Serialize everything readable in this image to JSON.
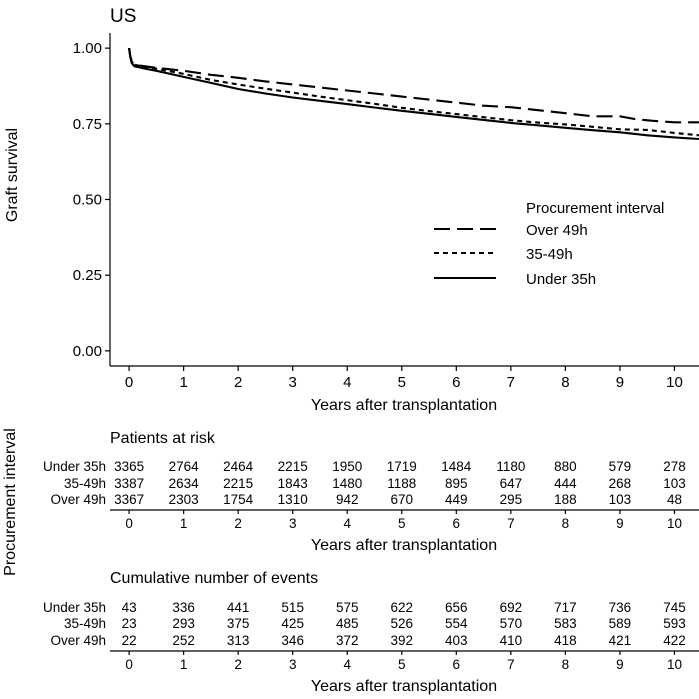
{
  "chart_data": {
    "type": "line",
    "title": "US",
    "xlabel": "Years after transplantation",
    "ylabel": "Graft survival",
    "xlim": [
      -0.35,
      10.45
    ],
    "ylim": [
      -0.05,
      1.05
    ],
    "x_ticks": [
      "0",
      "1",
      "2",
      "3",
      "4",
      "5",
      "6",
      "7",
      "8",
      "9",
      "10"
    ],
    "y_ticks": [
      "0.00",
      "0.25",
      "0.50",
      "0.75",
      "1.00"
    ],
    "legend": {
      "title": "Procurement interval",
      "position": "right",
      "items": [
        {
          "label": "Over 49h",
          "style": "long-dash"
        },
        {
          "label": "35-49h",
          "style": "short-dash"
        },
        {
          "label": "Under 35h",
          "style": "solid"
        }
      ]
    },
    "series": [
      {
        "name": "Over 49h",
        "style": "long-dash",
        "x": [
          0,
          0.02,
          0.05,
          0.1,
          0.3,
          0.5,
          1,
          1.5,
          2,
          2.5,
          3,
          3.5,
          4,
          4.5,
          5,
          5.5,
          6,
          6.5,
          7,
          7.5,
          8,
          8.5,
          9,
          9.3,
          9.6,
          10,
          10.45
        ],
        "y": [
          1.0,
          0.975,
          0.955,
          0.945,
          0.94,
          0.935,
          0.925,
          0.912,
          0.902,
          0.89,
          0.88,
          0.87,
          0.86,
          0.85,
          0.84,
          0.83,
          0.82,
          0.81,
          0.805,
          0.795,
          0.785,
          0.775,
          0.775,
          0.765,
          0.76,
          0.755,
          0.755
        ]
      },
      {
        "name": "35-49h",
        "style": "short-dash",
        "x": [
          0,
          0.02,
          0.05,
          0.1,
          0.3,
          0.5,
          1,
          1.5,
          2,
          2.5,
          3,
          3.5,
          4,
          4.5,
          5,
          5.5,
          6,
          6.5,
          7,
          7.5,
          8,
          8.5,
          9,
          9.5,
          10,
          10.45
        ],
        "y": [
          1.0,
          0.975,
          0.955,
          0.945,
          0.938,
          0.932,
          0.915,
          0.895,
          0.88,
          0.866,
          0.853,
          0.84,
          0.828,
          0.816,
          0.803,
          0.792,
          0.782,
          0.772,
          0.762,
          0.754,
          0.748,
          0.74,
          0.732,
          0.73,
          0.72,
          0.712
        ]
      },
      {
        "name": "Under 35h",
        "style": "solid",
        "x": [
          0,
          0.02,
          0.05,
          0.1,
          0.3,
          0.5,
          1,
          1.5,
          2,
          2.5,
          3,
          3.5,
          4,
          4.5,
          5,
          5.5,
          6,
          6.5,
          7,
          7.5,
          8,
          8.5,
          9,
          9.5,
          10,
          10.45
        ],
        "y": [
          1.0,
          0.972,
          0.95,
          0.94,
          0.932,
          0.925,
          0.905,
          0.885,
          0.865,
          0.85,
          0.837,
          0.826,
          0.815,
          0.804,
          0.793,
          0.783,
          0.773,
          0.763,
          0.753,
          0.745,
          0.737,
          0.729,
          0.722,
          0.712,
          0.705,
          0.7
        ]
      }
    ],
    "risk_table": {
      "group_axis_label": "Procurement interval",
      "x_ticks": [
        "0",
        "1",
        "2",
        "3",
        "4",
        "5",
        "6",
        "7",
        "8",
        "9",
        "10"
      ],
      "xlabel": "Years after transplantation",
      "tables": [
        {
          "title": "Patients at risk",
          "rows": [
            {
              "label": "Under 35h",
              "values": [
                "3365",
                "2764",
                "2464",
                "2215",
                "1950",
                "1719",
                "1484",
                "1180",
                "880",
                "579",
                "278"
              ]
            },
            {
              "label": "35-49h",
              "values": [
                "3387",
                "2634",
                "2215",
                "1843",
                "1480",
                "1188",
                "895",
                "647",
                "444",
                "268",
                "103"
              ]
            },
            {
              "label": "Over 49h",
              "values": [
                "3367",
                "2303",
                "1754",
                "1310",
                "942",
                "670",
                "449",
                "295",
                "188",
                "103",
                "48"
              ]
            }
          ]
        },
        {
          "title": "Cumulative number of events",
          "rows": [
            {
              "label": "Under 35h",
              "values": [
                "43",
                "336",
                "441",
                "515",
                "575",
                "622",
                "656",
                "692",
                "717",
                "736",
                "745"
              ]
            },
            {
              "label": "35-49h",
              "values": [
                "23",
                "293",
                "375",
                "425",
                "485",
                "526",
                "554",
                "570",
                "583",
                "589",
                "593"
              ]
            },
            {
              "label": "Over 49h",
              "values": [
                "22",
                "252",
                "313",
                "346",
                "372",
                "392",
                "403",
                "410",
                "418",
                "421",
                "422"
              ]
            }
          ]
        }
      ]
    }
  }
}
